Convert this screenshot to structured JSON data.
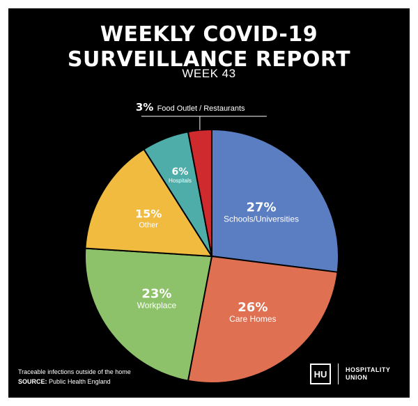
{
  "header": {
    "title_line1": "WEEKLY COVID-19",
    "title_line2": "SURVEILLANCE REPORT",
    "week": "WEEK 43"
  },
  "footer": {
    "note": "Traceable infections outside of the home",
    "source_label": "SOURCE:",
    "source_value": "Public Health England"
  },
  "brand": {
    "logo_text": "HU",
    "name": "HOSPITALITY\nUNION"
  },
  "chart_data": {
    "type": "pie",
    "title": "WEEKLY COVID-19 SURVEILLANCE REPORT",
    "subtitle": "WEEK 43",
    "slices": [
      {
        "label": "Schools/Universities",
        "pct_label": "27%",
        "value": 27,
        "color": "#5b7ec2"
      },
      {
        "label": "Care Homes",
        "pct_label": "26%",
        "value": 26,
        "color": "#e07052"
      },
      {
        "label": "Workplace",
        "pct_label": "23%",
        "value": 23,
        "color": "#8dc26b"
      },
      {
        "label": "Other",
        "pct_label": "15%",
        "value": 15,
        "color": "#f0bb3f"
      },
      {
        "label": "Hospitals",
        "pct_label": "6%",
        "value": 6,
        "color": "#4fada9"
      },
      {
        "label": "Food Outlet / Restaurants",
        "pct_label": "3%",
        "value": 3,
        "color": "#cf2a2e"
      }
    ]
  }
}
